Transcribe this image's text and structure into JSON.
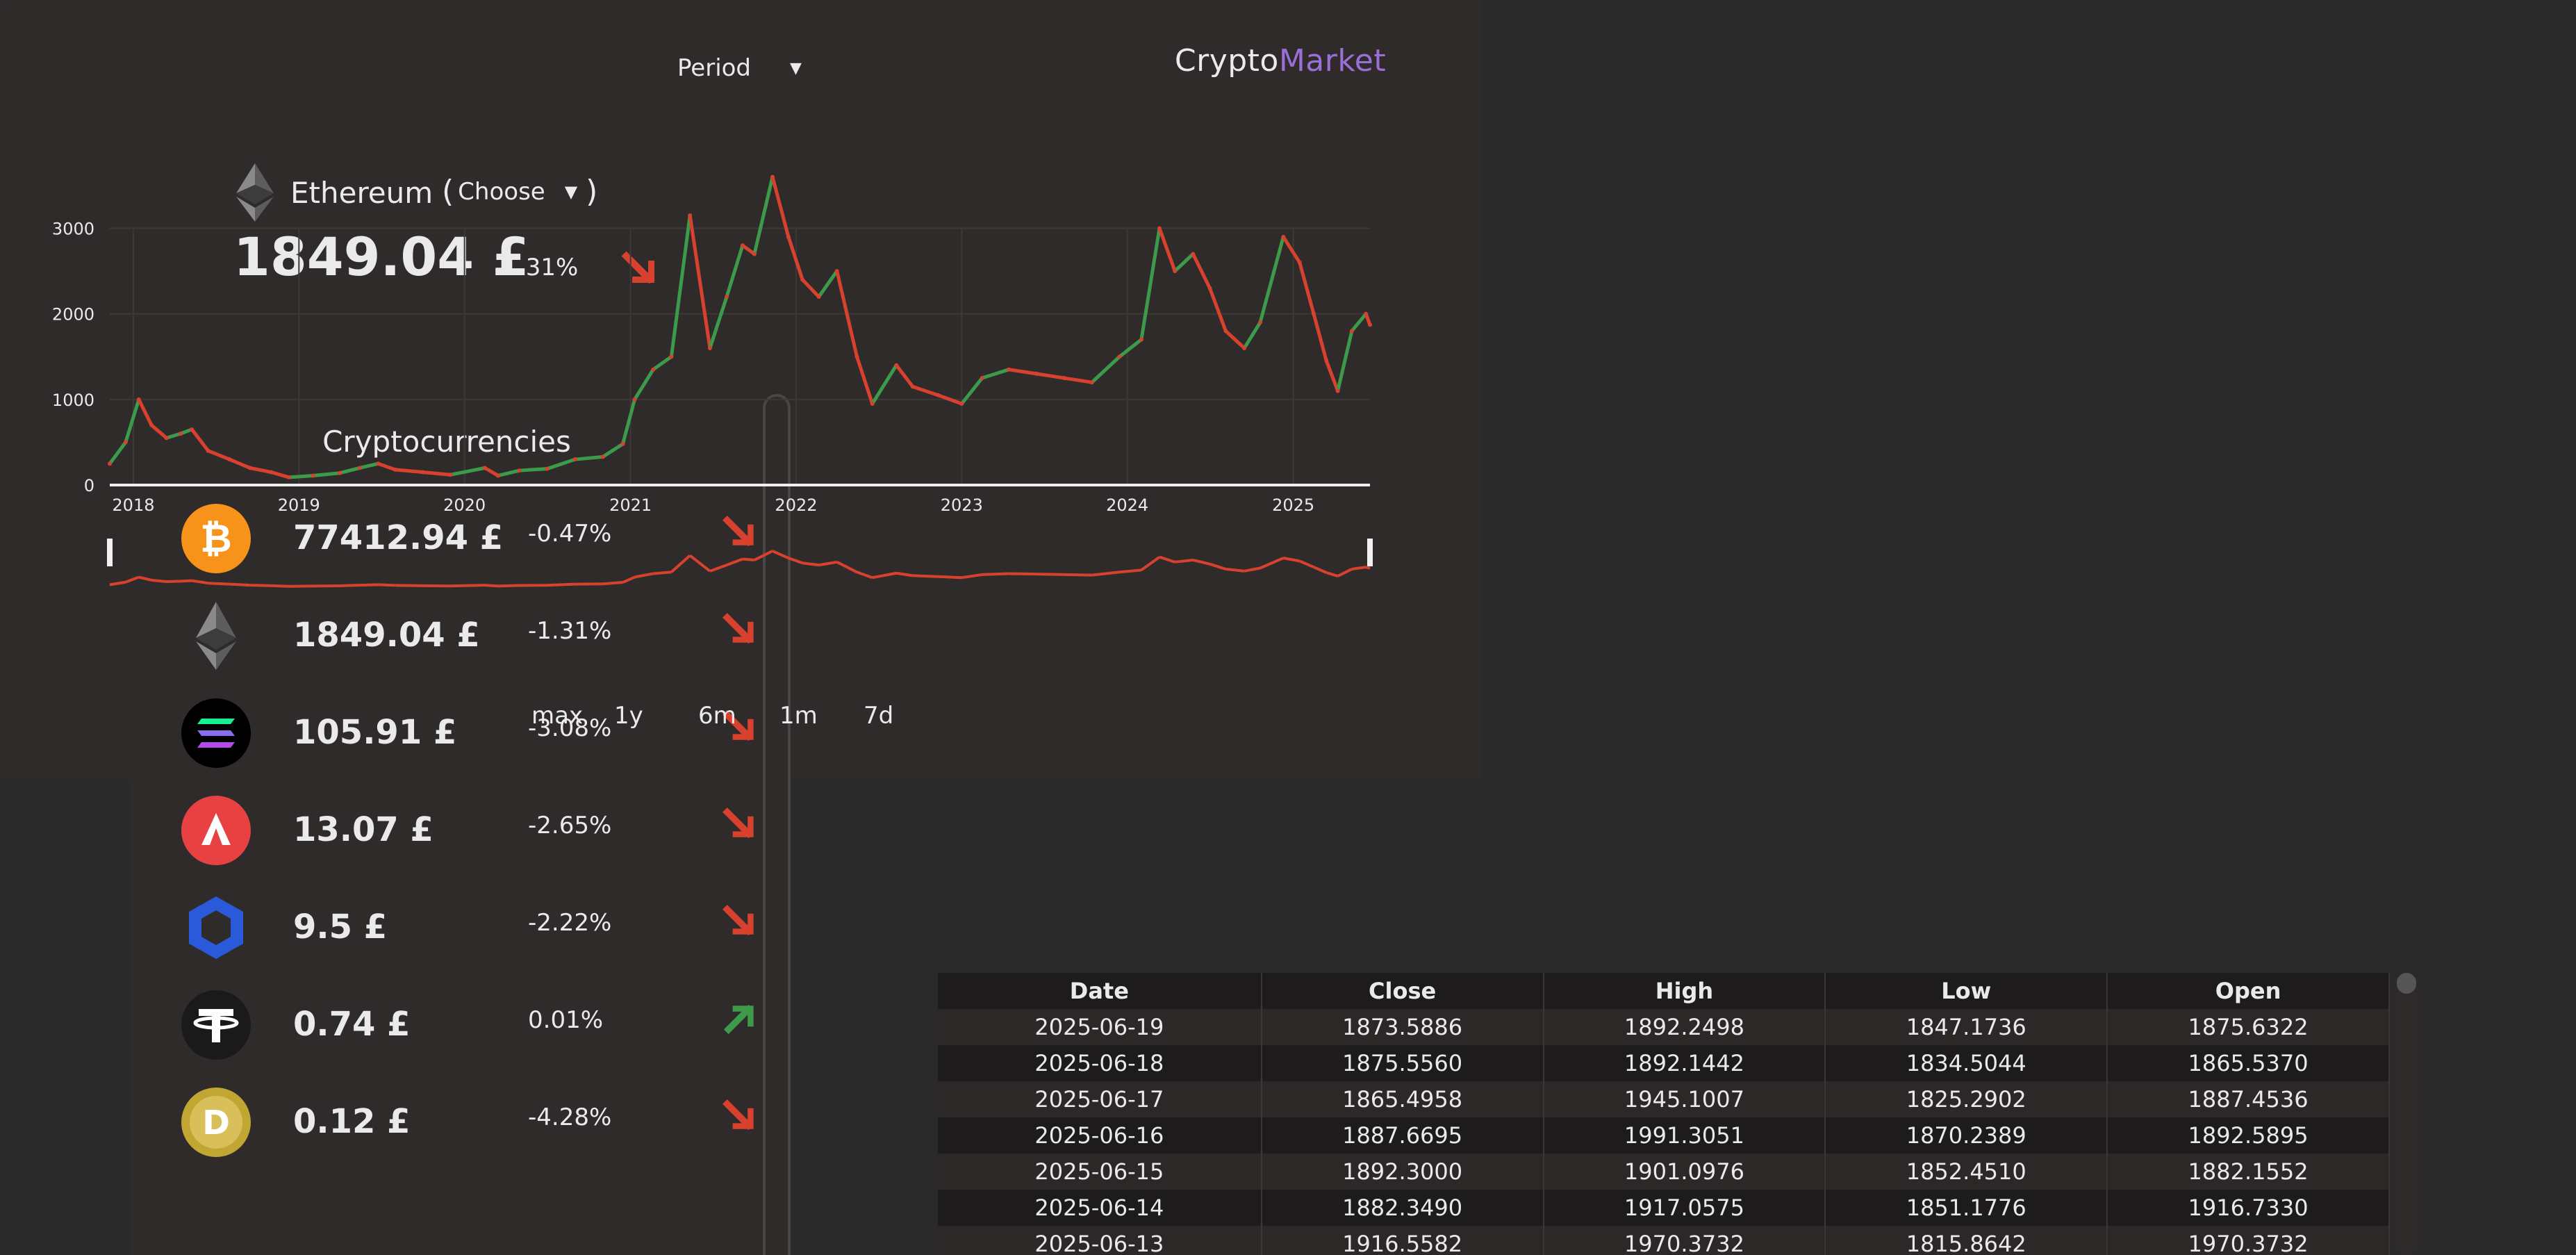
{
  "app": {
    "title_part1": "Crypto",
    "title_part2": "Market",
    "accent_color": "#9b6fd8"
  },
  "selected": {
    "name": "Ethereum",
    "choose_label": "Choose",
    "price": "1849.04 £",
    "change": "-1.31%",
    "icon": "ethereum-icon",
    "trend": "down"
  },
  "list": {
    "heading": "Cryptocurrencies",
    "coins": [
      {
        "icon": "bitcoin-icon",
        "price": "77412.94 £",
        "change": "-0.47%",
        "trend": "down"
      },
      {
        "icon": "ethereum-icon",
        "price": "1849.04 £",
        "change": "-1.31%",
        "trend": "down"
      },
      {
        "icon": "solana-icon",
        "price": "105.91 £",
        "change": "-3.08%",
        "trend": "down"
      },
      {
        "icon": "avalanche-icon",
        "price": "13.07 £",
        "change": "-2.65%",
        "trend": "down"
      },
      {
        "icon": "chainlink-icon",
        "price": "9.5 £",
        "change": "-2.22%",
        "trend": "down"
      },
      {
        "icon": "tether-icon",
        "price": "0.74 £",
        "change": "0.01%",
        "trend": "up"
      },
      {
        "icon": "dogecoin-icon",
        "price": "0.12 £",
        "change": "-4.28%",
        "trend": "down"
      }
    ]
  },
  "chart": {
    "period_label": "Period",
    "ranges": [
      "max",
      "1y",
      "6m",
      "1m",
      "7d"
    ]
  },
  "colors": {
    "down": "#d9412f",
    "up": "#3d9a4a",
    "bg": "#2a2a2a",
    "panel": "#2f2b2a"
  },
  "chart_data": {
    "type": "line",
    "xlabel": "",
    "ylabel": "",
    "x_ticks": [
      "2018",
      "2019",
      "2020",
      "2021",
      "2022",
      "2023",
      "2024",
      "2025"
    ],
    "y_ticks": [
      0,
      1000,
      2000,
      3000
    ],
    "ylim": [
      0,
      3800
    ],
    "xlim": [
      "2017-11-10",
      "2025-06-19"
    ],
    "grid": true,
    "series": [
      {
        "x": [
          "2017-11-10",
          "2017-12-15",
          "2018-01-13",
          "2018-02-10",
          "2018-03-15",
          "2018-04-15",
          "2018-05-10",
          "2018-06-15",
          "2018-08-01",
          "2018-09-15",
          "2018-11-01",
          "2018-12-10",
          "2019-02-01",
          "2019-04-01",
          "2019-05-15",
          "2019-06-25",
          "2019-08-01",
          "2019-10-01",
          "2019-12-01",
          "2020-02-15",
          "2020-03-15",
          "2020-05-01",
          "2020-07-01",
          "2020-09-01",
          "2020-11-01",
          "2020-12-15",
          "2021-01-10",
          "2021-02-20",
          "2021-04-01",
          "2021-05-12",
          "2021-06-25",
          "2021-08-01",
          "2021-09-05",
          "2021-10-01",
          "2021-11-10",
          "2021-12-15",
          "2022-01-15",
          "2022-02-20",
          "2022-04-01",
          "2022-05-15",
          "2022-06-18",
          "2022-08-10",
          "2022-09-15",
          "2022-11-10",
          "2023-01-01",
          "2023-02-15",
          "2023-04-15",
          "2023-06-15",
          "2023-08-15",
          "2023-10-15",
          "2023-12-15",
          "2024-02-01",
          "2024-03-12",
          "2024-04-15",
          "2024-05-25",
          "2024-07-01",
          "2024-08-05",
          "2024-09-15",
          "2024-10-20",
          "2024-12-10",
          "2025-01-15",
          "2025-02-15",
          "2025-03-15",
          "2025-04-09",
          "2025-05-10",
          "2025-06-10",
          "2025-06-19"
        ],
        "values": [
          250,
          500,
          1000,
          700,
          550,
          600,
          650,
          400,
          300,
          200,
          150,
          90,
          110,
          140,
          200,
          250,
          180,
          150,
          120,
          200,
          110,
          170,
          190,
          300,
          330,
          480,
          1000,
          1350,
          1500,
          3150,
          1600,
          2200,
          2800,
          2700,
          3600,
          2900,
          2400,
          2200,
          2500,
          1500,
          950,
          1400,
          1150,
          1050,
          950,
          1250,
          1350,
          1300,
          1250,
          1200,
          1500,
          1700,
          3000,
          2500,
          2700,
          2300,
          1800,
          1600,
          1900,
          2900,
          2600,
          2000,
          1450,
          1100,
          1800,
          2000,
          1873
        ]
      }
    ]
  },
  "table": {
    "headers": [
      "Date",
      "Close",
      "High",
      "Low",
      "Open"
    ],
    "rows": [
      [
        "2025-06-19",
        "1873.5886",
        "1892.2498",
        "1847.1736",
        "1875.6322"
      ],
      [
        "2025-06-18",
        "1875.5560",
        "1892.1442",
        "1834.5044",
        "1865.5370"
      ],
      [
        "2025-06-17",
        "1865.4958",
        "1945.1007",
        "1825.2902",
        "1887.4536"
      ],
      [
        "2025-06-16",
        "1887.6695",
        "1991.3051",
        "1870.2389",
        "1892.5895"
      ],
      [
        "2025-06-15",
        "1892.3000",
        "1901.0976",
        "1852.4510",
        "1882.1552"
      ],
      [
        "2025-06-14",
        "1882.3490",
        "1917.0575",
        "1851.1776",
        "1916.7330"
      ],
      [
        "2025-06-13",
        "1916.5582",
        "1970.3732",
        "1815.8642",
        "1970.3732"
      ]
    ]
  }
}
